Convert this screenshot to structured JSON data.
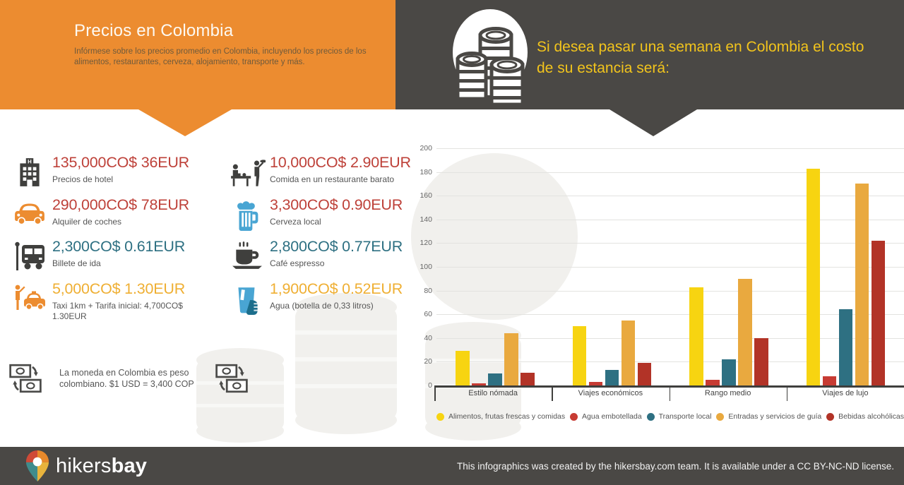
{
  "header": {
    "title": "Precios en Colombia",
    "subtitle": "Infórmese sobre los precios promedio en Colombia, incluyendo los precios de los alimentos, restaurantes, cerveza, alojamiento, transporte y más.",
    "banner_right": "Si desea pasar una semana en Colombia el costo de su estancia será:",
    "colors": {
      "orange": "#EC8C30",
      "dark": "#4A4845",
      "yellow_text": "#F2C41C"
    }
  },
  "prices": [
    {
      "icon": "hotel-icon",
      "value": "135,000CO$ 36EUR",
      "label": "Precios de hotel",
      "color": "#BE4139"
    },
    {
      "icon": "car-icon",
      "value": "290,000CO$ 78EUR",
      "label": "Alquiler de coches",
      "color": "#BE4139"
    },
    {
      "icon": "bus-stop-icon",
      "value": "2,300CO$ 0.61EUR",
      "label": "Billete de ida",
      "color": "#2E7082"
    },
    {
      "icon": "taxi-icon",
      "value": "5,000CO$ 1.30EUR",
      "label": "Taxi 1km + Tarifa inicial: 4,700CO$ 1.30EUR",
      "color": "#EFAF33"
    },
    {
      "icon": "restaurant-icon",
      "value": "10,000CO$ 2.90EUR",
      "label": "Comida en un restaurante barato",
      "color": "#BE4139"
    },
    {
      "icon": "beer-icon",
      "value": "3,300CO$ 0.90EUR",
      "label": "Cerveza local",
      "color": "#BE4139"
    },
    {
      "icon": "coffee-icon",
      "value": "2,800CO$ 0.77EUR",
      "label": "Café espresso",
      "color": "#2E7082"
    },
    {
      "icon": "water-icon",
      "value": "1,900CO$ 0.52EUR",
      "label": "Agua (botella de 0,33 litros)",
      "color": "#EFAF33"
    }
  ],
  "currency_note": "La moneda en Colombia es peso colombiano. $1 USD = 3,400 COP",
  "chart_data": {
    "type": "bar",
    "categories": [
      "Estilo nómada",
      "Viajes económicos",
      "Rango medio",
      "Viajes de lujo"
    ],
    "series": [
      {
        "name": "Alimentos, frutas frescas y comidas",
        "color": "#F7D411",
        "values": [
          29,
          50,
          83,
          183
        ]
      },
      {
        "name": "Agua embotellada",
        "color": "#C73B33",
        "values": [
          2,
          3,
          5,
          8
        ]
      },
      {
        "name": "Transporte local",
        "color": "#2E7082",
        "values": [
          10,
          13,
          22,
          64
        ]
      },
      {
        "name": "Entradas y servicios de guía",
        "color": "#E9A93F",
        "values": [
          44,
          55,
          90,
          170
        ]
      },
      {
        "name": "Bebidas alcohólicas",
        "color": "#B23327",
        "values": [
          11,
          19,
          40,
          122
        ]
      }
    ],
    "ylim": [
      0,
      200
    ],
    "ytick_step": 20,
    "grid": true,
    "legend_position": "bottom",
    "title": "Si desea pasar una semana en Colombia el costo de su estancia será:",
    "xlabel": "",
    "ylabel": ""
  },
  "footer": {
    "logo_text_regular": "hikers",
    "logo_text_bold": "bay",
    "credit": "This infographics was created by the hikersbay.com team. It is available under a CC BY-NC-ND license."
  }
}
